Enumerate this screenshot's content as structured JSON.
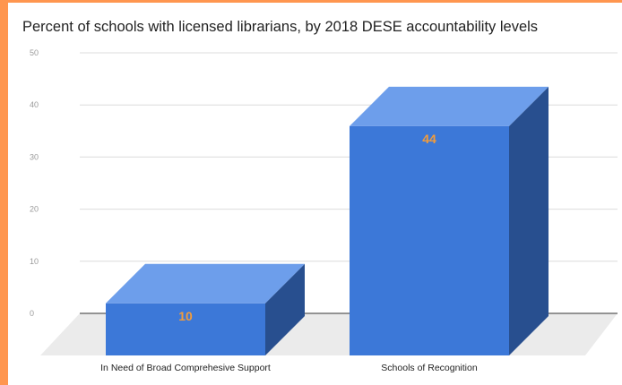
{
  "chart_data": {
    "type": "bar",
    "style": "3d",
    "title": "Percent of schools with licensed librarians, by 2018 DESE accountability levels",
    "xlabel": "",
    "ylabel": "",
    "categories": [
      "In Need of Broad Comprehesive Support",
      "Schools of Recognition"
    ],
    "values": [
      10,
      44
    ],
    "data_labels": [
      "10",
      "44"
    ],
    "ylim": [
      0,
      50
    ],
    "yticks": [
      "0",
      "10",
      "20",
      "30",
      "40",
      "50"
    ],
    "grid": true,
    "legend": "none",
    "colors": {
      "bar_front": "#3c78d8",
      "bar_top": "#6d9eeb",
      "bar_side": "#284f8f",
      "floor": "#ebebeb",
      "label": "#f39c3a",
      "background": "#ff964f"
    }
  }
}
